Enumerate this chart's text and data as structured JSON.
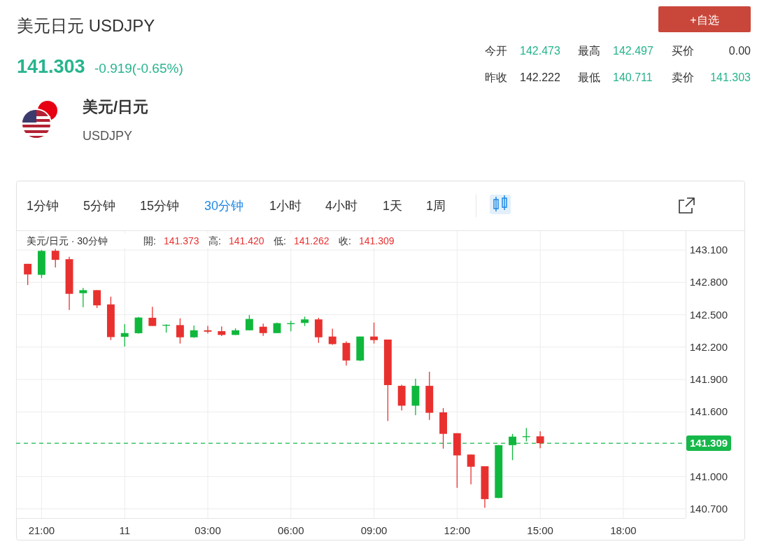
{
  "chart_data": {
    "type": "candlestick",
    "title": "美元日元 USDJPY",
    "annotations": [
      "141.303",
      "-0.919(-0.65%)",
      "美元/日元",
      "USDJPY",
      "+自选",
      "今开",
      "142.473",
      "最高",
      "142.497",
      "买价",
      "0.00",
      "昨收",
      "142.222",
      "最低",
      "140.711",
      "卖价",
      "141.303",
      "1分钟",
      "5分钟",
      "15分钟",
      "30分钟",
      "1小时",
      "4小时",
      "1天",
      "1周",
      "美元/日元 · 30分钟",
      "開:",
      "141.373",
      "高:",
      "141.420",
      "低:",
      "141.262",
      "收:",
      "141.309"
    ],
    "categories": [
      null,
      "21:00",
      null,
      null,
      null,
      null,
      null,
      "11",
      null,
      null,
      null,
      null,
      null,
      "03:00",
      null,
      null,
      null,
      null,
      null,
      "06:00",
      null,
      null,
      null,
      null,
      null,
      "09:00",
      null,
      null,
      null,
      null,
      null,
      "12:00",
      null,
      null,
      null,
      null,
      null,
      "15:00",
      null,
      null,
      null,
      null,
      null,
      "18:00",
      null,
      null,
      null,
      null
    ],
    "ohlc": [
      [
        142.972,
        142.972,
        142.776,
        142.874
      ],
      [
        142.87,
        143.1,
        142.841,
        143.092
      ],
      [
        143.093,
        143.11,
        142.939,
        143.009
      ],
      [
        143.015,
        143.037,
        142.544,
        142.694
      ],
      [
        142.7,
        142.748,
        142.57,
        142.728
      ],
      [
        142.728,
        142.728,
        142.563,
        142.587
      ],
      [
        142.596,
        142.668,
        142.265,
        142.293
      ],
      [
        142.296,
        142.413,
        142.205,
        142.33
      ],
      [
        142.329,
        142.48,
        142.325,
        142.474
      ],
      [
        142.472,
        142.574,
        142.396,
        142.396
      ],
      [
        142.402,
        142.411,
        142.335,
        142.407
      ],
      [
        142.404,
        142.467,
        142.233,
        142.291
      ],
      [
        142.291,
        142.4,
        142.287,
        142.356
      ],
      [
        142.356,
        142.396,
        142.326,
        142.343
      ],
      [
        142.348,
        142.391,
        142.302,
        142.313
      ],
      [
        142.313,
        142.374,
        142.313,
        142.356
      ],
      [
        142.356,
        142.498,
        142.356,
        142.461
      ],
      [
        142.389,
        142.417,
        142.304,
        142.33
      ],
      [
        142.33,
        142.428,
        142.33,
        142.422
      ],
      [
        142.413,
        142.443,
        142.346,
        142.422
      ],
      [
        142.424,
        142.483,
        142.396,
        142.457
      ],
      [
        142.457,
        142.472,
        142.239,
        142.291
      ],
      [
        142.298,
        142.37,
        142.221,
        142.228
      ],
      [
        142.239,
        142.254,
        142.03,
        142.076
      ],
      [
        142.076,
        142.298,
        142.07,
        142.298
      ],
      [
        142.298,
        142.428,
        142.233,
        142.265
      ],
      [
        142.27,
        142.27,
        141.515,
        141.848
      ],
      [
        141.841,
        141.852,
        141.613,
        141.657
      ],
      [
        141.657,
        141.907,
        141.569,
        141.841
      ],
      [
        141.841,
        141.972,
        141.526,
        141.591
      ],
      [
        141.595,
        141.635,
        141.259,
        141.396
      ],
      [
        141.402,
        141.402,
        140.896,
        141.196
      ],
      [
        141.204,
        141.204,
        140.928,
        141.091
      ],
      [
        141.096,
        141.096,
        140.711,
        140.791
      ],
      [
        140.802,
        141.291,
        140.8,
        141.291
      ],
      [
        141.291,
        141.396,
        141.152,
        141.37
      ],
      [
        141.37,
        141.45,
        141.326,
        141.374
      ],
      [
        141.373,
        141.42,
        141.262,
        141.309
      ],
      null,
      null,
      null,
      null,
      null,
      null,
      null,
      null,
      null,
      null
    ],
    "colors": [
      "#e8312f",
      "#0fb83c",
      "#e8312f",
      "#e8312f",
      "#0fb83c",
      "#e8312f",
      "#e8312f",
      "#0fb83c",
      "#0fb83c",
      "#e8312f",
      "#0fb83c",
      "#e8312f",
      "#0fb83c",
      "#e8312f",
      "#e8312f",
      "#0fb83c",
      "#0fb83c",
      "#e8312f",
      "#0fb83c",
      "#0fb83c",
      "#0fb83c",
      "#e8312f",
      "#e8312f",
      "#e8312f",
      "#0fb83c",
      "#e8312f",
      "#e8312f",
      "#e8312f",
      "#0fb83c",
      "#e8312f",
      "#e8312f",
      "#e8312f",
      "#e8312f",
      "#e8312f",
      "#0fb83c",
      "#0fb83c",
      "#0fb83c",
      "#e8312f",
      null,
      null,
      null,
      null,
      null,
      null,
      null,
      null,
      null,
      null
    ],
    "ylim": [
      140.615,
      143.276
    ],
    "yticks": [
      {
        "value": 140.7,
        "label": "140.700"
      },
      {
        "value": 141.0,
        "label": "141.000"
      },
      {
        "value": 141.6,
        "label": "141.600"
      },
      {
        "value": 141.9,
        "label": "141.900"
      },
      {
        "value": 142.2,
        "label": "142.200"
      },
      {
        "value": 142.5,
        "label": "142.500"
      },
      {
        "value": 142.8,
        "label": "142.800"
      },
      {
        "value": 143.1,
        "label": "143.100"
      }
    ],
    "ref_lines": [
      {
        "axis": "y",
        "value": 141.309,
        "label": "141.309",
        "color": "#16b84a",
        "line_style": "dashed"
      }
    ],
    "grid": true
  }
}
